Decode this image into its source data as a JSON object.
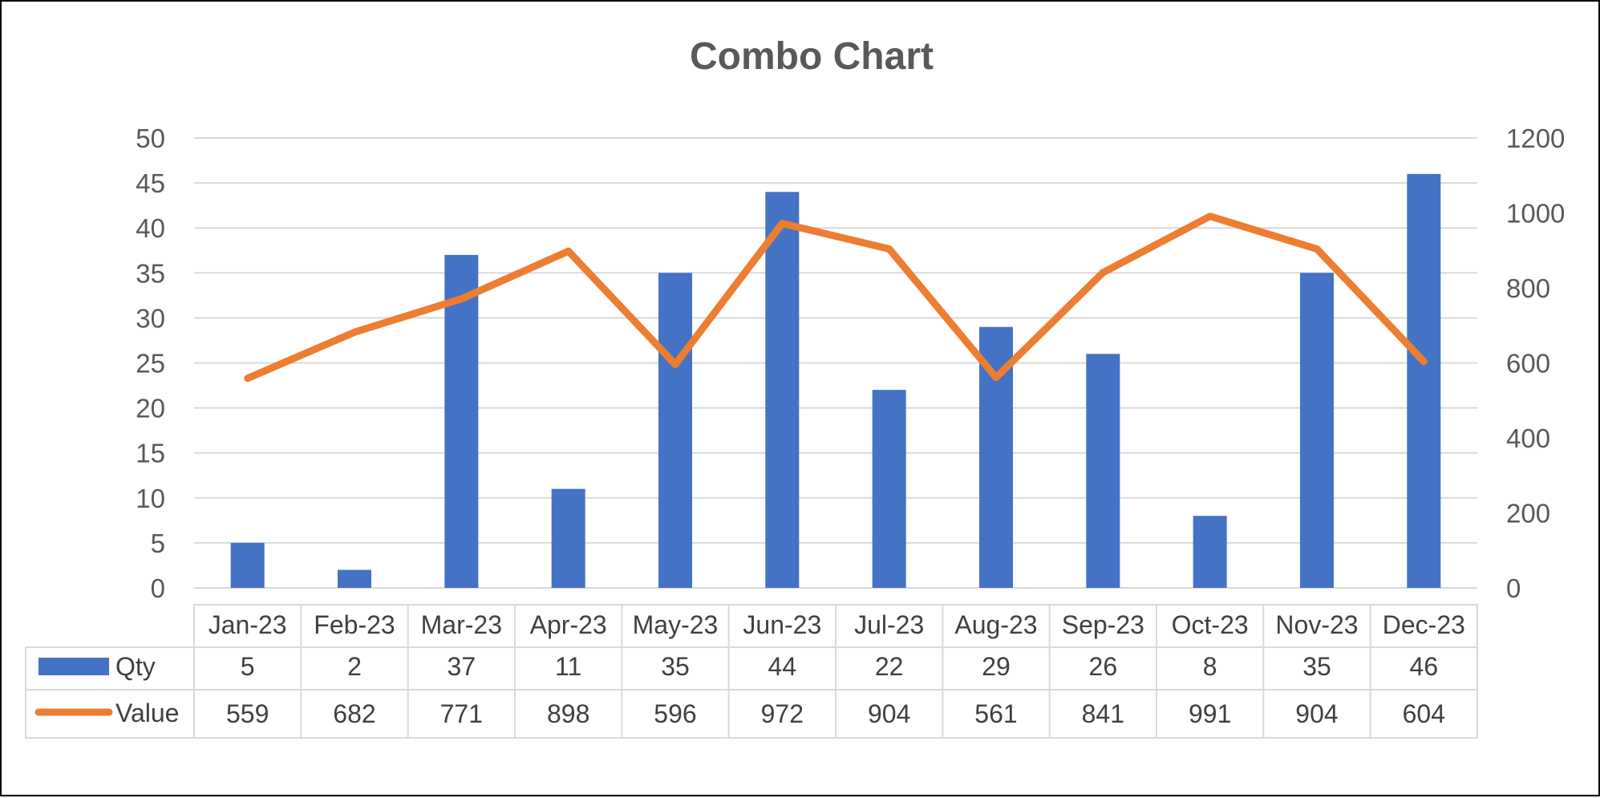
{
  "chart_data": {
    "type": "bar",
    "title": "Combo Chart",
    "categories": [
      "Jan-23",
      "Feb-23",
      "Mar-23",
      "Apr-23",
      "May-23",
      "Jun-23",
      "Jul-23",
      "Aug-23",
      "Sep-23",
      "Oct-23",
      "Nov-23",
      "Dec-23"
    ],
    "series": [
      {
        "name": "Qty",
        "type": "bar",
        "axis": "left",
        "color": "#4472C4",
        "values": [
          5,
          2,
          37,
          11,
          35,
          44,
          22,
          29,
          26,
          8,
          35,
          46
        ]
      },
      {
        "name": "Value",
        "type": "line",
        "axis": "right",
        "color": "#ED7D31",
        "values": [
          559,
          682,
          771,
          898,
          596,
          972,
          904,
          561,
          841,
          991,
          904,
          604
        ]
      }
    ],
    "y_left": {
      "min": 0,
      "max": 50,
      "ticks": [
        0,
        5,
        10,
        15,
        20,
        25,
        30,
        35,
        40,
        45,
        50
      ]
    },
    "y_right": {
      "min": 0,
      "max": 1200,
      "ticks": [
        0,
        200,
        400,
        600,
        800,
        1000,
        1200
      ]
    },
    "grid": true,
    "legend": "data table below chart"
  }
}
